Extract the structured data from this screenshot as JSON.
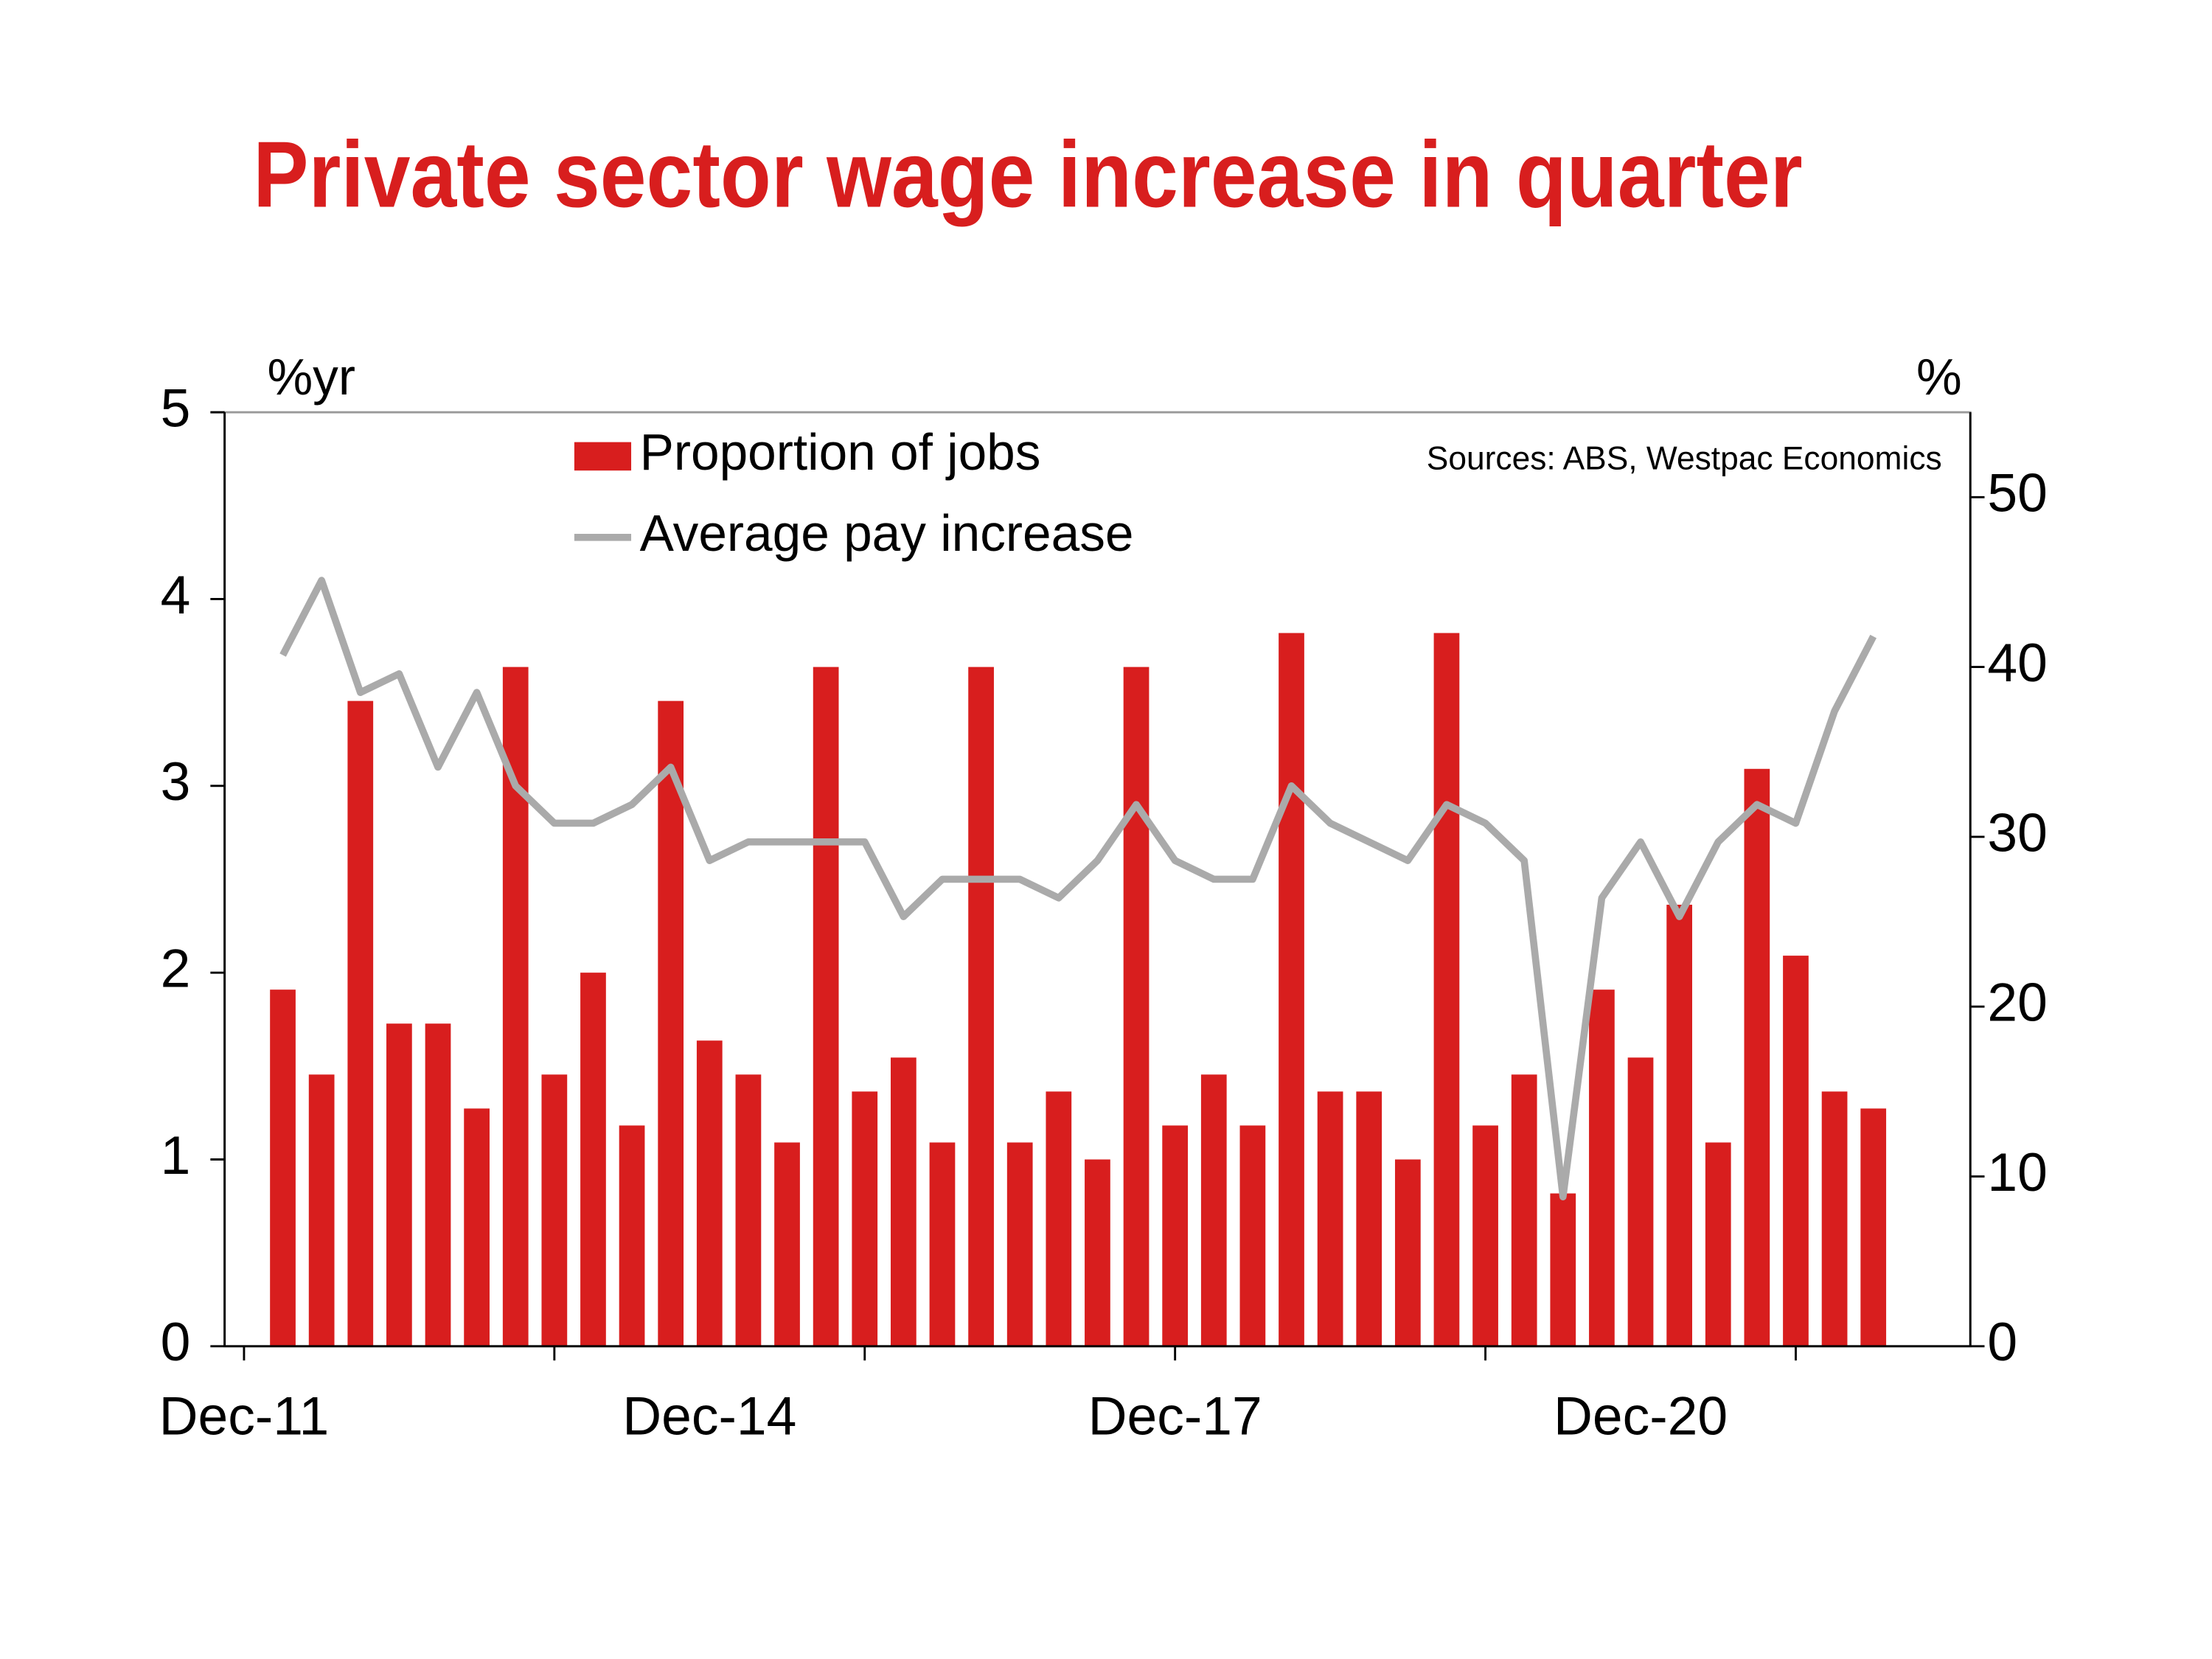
{
  "chart_data": {
    "type": "bar-line",
    "title": "Private sector wage increase in quarter",
    "y_label": "%yr",
    "y2_label": "%",
    "annotation": "Sources: ABS, Westpac Economics",
    "categories": [
      "Dec-11",
      null,
      null,
      null,
      null,
      null,
      null,
      null,
      null,
      null,
      null,
      null,
      "Dec-14",
      null,
      null,
      null,
      null,
      null,
      null,
      null,
      null,
      null,
      null,
      null,
      "Dec-17",
      null,
      null,
      null,
      null,
      null,
      null,
      null,
      null,
      null,
      null,
      null,
      "Dec-20",
      null,
      null,
      null,
      null,
      null,
      null,
      null,
      null
    ],
    "ylim": [
      0,
      5
    ],
    "yticks": [
      0,
      1,
      2,
      3,
      4,
      5
    ],
    "y2lim": [
      0,
      55
    ],
    "y2ticks": [
      0,
      10,
      20,
      30,
      40,
      50
    ],
    "legend": "top-left",
    "series": [
      {
        "name": "Proportion of jobs",
        "type": "bar",
        "axis": "y2",
        "color": "#d81e1e",
        "values": [
          null,
          21,
          16,
          38,
          19,
          19,
          14,
          40,
          16,
          22,
          13,
          38,
          18,
          16,
          12,
          40,
          15,
          17,
          12,
          40,
          12,
          15,
          11,
          40,
          13,
          16,
          13,
          42,
          15,
          15,
          11,
          42,
          13,
          16,
          9,
          21,
          17,
          26,
          12,
          34,
          23,
          15,
          14,
          null,
          null
        ]
      },
      {
        "name": "Average pay increase",
        "type": "line",
        "axis": "y",
        "color": "#aaaaaa",
        "values": [
          null,
          3.7,
          4.1,
          3.5,
          3.6,
          3.1,
          3.5,
          3.0,
          2.8,
          2.8,
          2.9,
          3.1,
          2.6,
          2.7,
          2.7,
          2.7,
          2.7,
          2.3,
          2.5,
          2.5,
          2.5,
          2.4,
          2.6,
          2.9,
          2.6,
          2.5,
          2.5,
          3.0,
          2.8,
          2.7,
          2.6,
          2.9,
          2.8,
          2.6,
          0.8,
          2.4,
          2.7,
          2.3,
          2.7,
          2.9,
          2.8,
          3.4,
          3.8,
          null,
          null
        ]
      }
    ]
  }
}
